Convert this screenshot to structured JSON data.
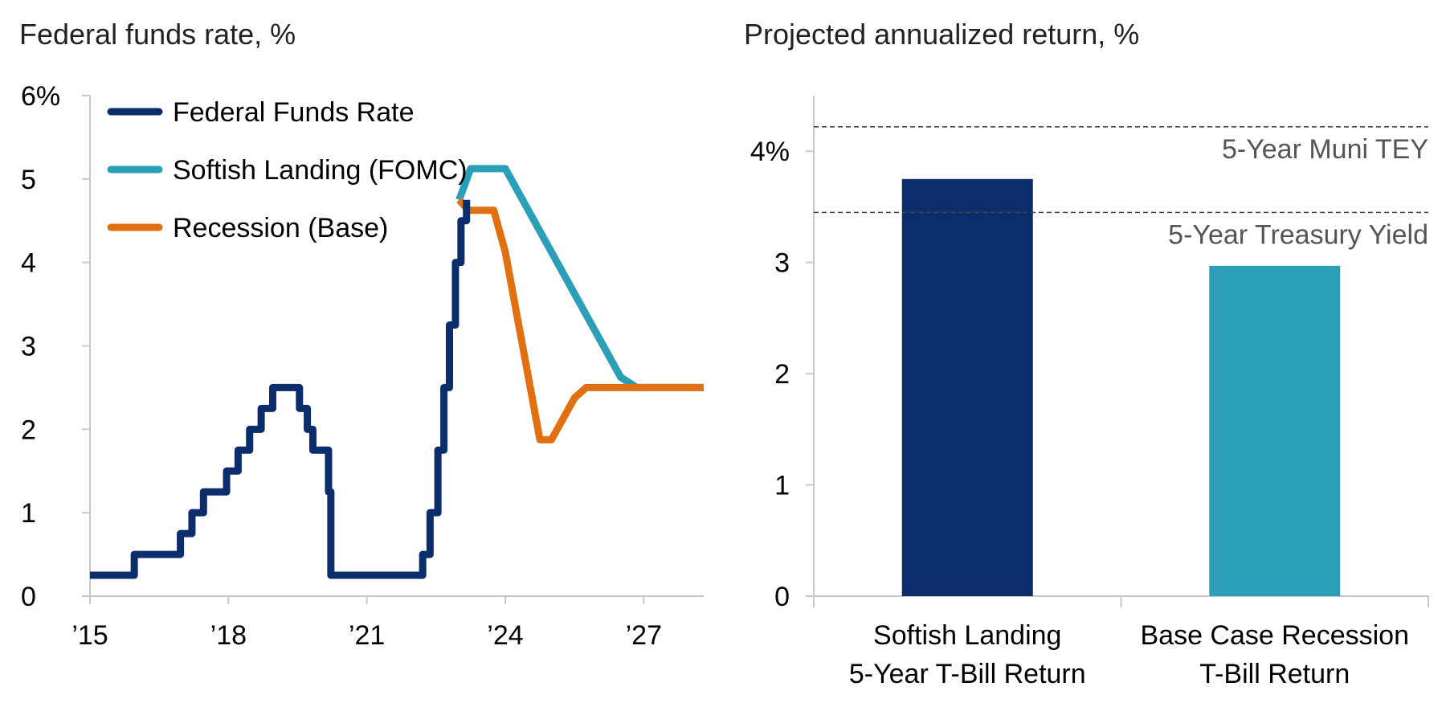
{
  "chart_data": [
    {
      "type": "line",
      "title": "Federal funds rate, %",
      "y_ticks": [
        "0",
        "1",
        "2",
        "3",
        "4",
        "5",
        "6%"
      ],
      "x_ticks": [
        "’15",
        "’18",
        "’21",
        "’24",
        "’27"
      ],
      "x_tick_years": [
        2015,
        2018,
        2021,
        2024,
        2027
      ],
      "xlim": [
        2015,
        2028.3
      ],
      "ylim": [
        0,
        6
      ],
      "legend_position": "top-left",
      "series": [
        {
          "name": "Federal Funds Rate",
          "color": "#0b2d6b",
          "step": true,
          "points": [
            [
              2015.0,
              0.25
            ],
            [
              2015.96,
              0.5
            ],
            [
              2016.96,
              0.75
            ],
            [
              2017.21,
              1.0
            ],
            [
              2017.46,
              1.25
            ],
            [
              2017.96,
              1.5
            ],
            [
              2018.21,
              1.75
            ],
            [
              2018.46,
              2.0
            ],
            [
              2018.71,
              2.25
            ],
            [
              2018.96,
              2.5
            ],
            [
              2019.54,
              2.25
            ],
            [
              2019.71,
              2.0
            ],
            [
              2019.83,
              1.75
            ],
            [
              2020.17,
              1.25
            ],
            [
              2020.22,
              0.25
            ],
            [
              2022.21,
              0.5
            ],
            [
              2022.37,
              1.0
            ],
            [
              2022.54,
              1.75
            ],
            [
              2022.67,
              2.5
            ],
            [
              2022.79,
              3.25
            ],
            [
              2022.92,
              4.0
            ],
            [
              2023.04,
              4.5
            ],
            [
              2023.12,
              4.5
            ],
            [
              2023.16,
              4.75
            ]
          ]
        },
        {
          "name": "Softish Landing (FOMC)",
          "color": "#2c9fb8",
          "step": false,
          "points": [
            [
              2023.0,
              4.75
            ],
            [
              2023.25,
              5.125
            ],
            [
              2024.0,
              5.125
            ],
            [
              2026.5,
              2.625
            ],
            [
              2026.85,
              2.5
            ],
            [
              2028.3,
              2.5
            ]
          ]
        },
        {
          "name": "Recession (Base)",
          "color": "#e07010",
          "step": false,
          "points": [
            [
              2023.0,
              4.75
            ],
            [
              2023.2,
              4.625
            ],
            [
              2023.75,
              4.625
            ],
            [
              2024.0,
              4.125
            ],
            [
              2024.75,
              1.875
            ],
            [
              2025.0,
              1.875
            ],
            [
              2025.5,
              2.375
            ],
            [
              2025.75,
              2.5
            ],
            [
              2028.3,
              2.5
            ]
          ]
        }
      ]
    },
    {
      "type": "bar",
      "title": "Projected annualized return, %",
      "y_ticks": [
        "0",
        "1",
        "2",
        "3",
        "4%"
      ],
      "ylim": [
        0,
        4.5
      ],
      "categories": [
        [
          "Softish Landing",
          "5-Year T-Bill Return"
        ],
        [
          "Base Case Recession",
          "T-Bill Return"
        ]
      ],
      "values": [
        3.75,
        2.97
      ],
      "bar_colors": [
        "#0b2d6b",
        "#2c9fb8"
      ],
      "reference_lines": [
        {
          "label": "5-Year Muni TEY",
          "value": 4.22
        },
        {
          "label": "5-Year Treasury Yield",
          "value": 3.45
        }
      ]
    }
  ]
}
